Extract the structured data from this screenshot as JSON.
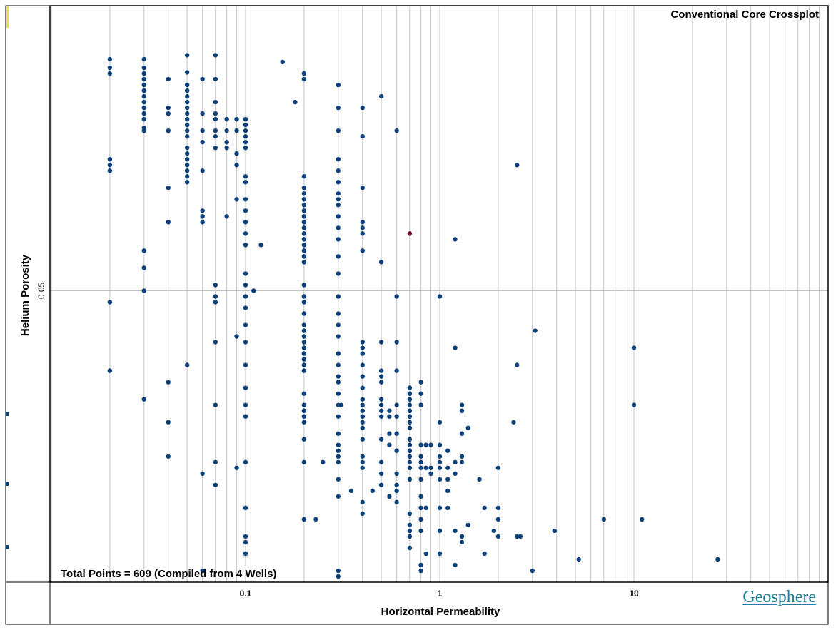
{
  "chart_data": {
    "type": "scatter",
    "title": "Conventional Core Crossplot",
    "xlabel": "Horizontal Permeability",
    "ylabel": "Helium Porosity",
    "x_scale": "log",
    "xlim": [
      0.01,
      100
    ],
    "x_tick_labels": [
      {
        "value": 0.1,
        "label": "0.1"
      },
      {
        "value": 1,
        "label": "1"
      },
      {
        "value": 10,
        "label": "10"
      }
    ],
    "y_tick_labels": [
      {
        "label": "0.05"
      }
    ],
    "grid": true,
    "annotation": "Total Points = 609 (Compiled from 4 Wells)",
    "watermark": "Geosphere",
    "colors": {
      "points": "#0d3f78",
      "highlight": "#7a1a2a",
      "grid": "#c4c4c4"
    },
    "points": [
      [
        0.02,
        0.0905
      ],
      [
        0.02,
        0.089
      ],
      [
        0.02,
        0.088
      ],
      [
        0.02,
        0.073
      ],
      [
        0.02,
        0.072
      ],
      [
        0.02,
        0.071
      ],
      [
        0.02,
        0.048
      ],
      [
        0.02,
        0.036
      ],
      [
        0.03,
        0.0905
      ],
      [
        0.03,
        0.089
      ],
      [
        0.03,
        0.088
      ],
      [
        0.03,
        0.087
      ],
      [
        0.03,
        0.086
      ],
      [
        0.03,
        0.085
      ],
      [
        0.03,
        0.084
      ],
      [
        0.03,
        0.083
      ],
      [
        0.03,
        0.082
      ],
      [
        0.03,
        0.081
      ],
      [
        0.03,
        0.08
      ],
      [
        0.03,
        0.0785
      ],
      [
        0.03,
        0.078
      ],
      [
        0.03,
        0.057
      ],
      [
        0.03,
        0.054
      ],
      [
        0.03,
        0.05
      ],
      [
        0.03,
        0.031
      ],
      [
        0.04,
        0.087
      ],
      [
        0.04,
        0.082
      ],
      [
        0.04,
        0.081
      ],
      [
        0.04,
        0.078
      ],
      [
        0.04,
        0.068
      ],
      [
        0.04,
        0.062
      ],
      [
        0.04,
        0.034
      ],
      [
        0.04,
        0.027
      ],
      [
        0.04,
        0.021
      ],
      [
        0.05,
        0.0912
      ],
      [
        0.05,
        0.0882
      ],
      [
        0.05,
        0.086
      ],
      [
        0.05,
        0.085
      ],
      [
        0.05,
        0.084
      ],
      [
        0.05,
        0.083
      ],
      [
        0.05,
        0.082
      ],
      [
        0.05,
        0.081
      ],
      [
        0.05,
        0.08
      ],
      [
        0.05,
        0.079
      ],
      [
        0.05,
        0.078
      ],
      [
        0.05,
        0.077
      ],
      [
        0.05,
        0.075
      ],
      [
        0.05,
        0.074
      ],
      [
        0.05,
        0.073
      ],
      [
        0.05,
        0.072
      ],
      [
        0.05,
        0.071
      ],
      [
        0.05,
        0.07
      ],
      [
        0.05,
        0.069
      ],
      [
        0.05,
        0.037
      ],
      [
        0.06,
        0.087
      ],
      [
        0.06,
        0.081
      ],
      [
        0.06,
        0.078
      ],
      [
        0.06,
        0.076
      ],
      [
        0.06,
        0.071
      ],
      [
        0.06,
        0.064
      ],
      [
        0.06,
        0.063
      ],
      [
        0.06,
        0.062
      ],
      [
        0.06,
        0.018
      ],
      [
        0.06,
        0.001
      ],
      [
        0.07,
        0.0912
      ],
      [
        0.07,
        0.087
      ],
      [
        0.07,
        0.083
      ],
      [
        0.07,
        0.081
      ],
      [
        0.07,
        0.08
      ],
      [
        0.07,
        0.078
      ],
      [
        0.07,
        0.077
      ],
      [
        0.07,
        0.075
      ],
      [
        0.07,
        0.051
      ],
      [
        0.07,
        0.049
      ],
      [
        0.07,
        0.048
      ],
      [
        0.07,
        0.041
      ],
      [
        0.07,
        0.03
      ],
      [
        0.07,
        0.02
      ],
      [
        0.07,
        0.016
      ],
      [
        0.08,
        0.08
      ],
      [
        0.08,
        0.078
      ],
      [
        0.08,
        0.076
      ],
      [
        0.08,
        0.075
      ],
      [
        0.08,
        0.063
      ],
      [
        0.09,
        0.08
      ],
      [
        0.09,
        0.078
      ],
      [
        0.09,
        0.074
      ],
      [
        0.09,
        0.072
      ],
      [
        0.09,
        0.066
      ],
      [
        0.09,
        0.042
      ],
      [
        0.09,
        0.019
      ],
      [
        0.1,
        0.08
      ],
      [
        0.1,
        0.079
      ],
      [
        0.1,
        0.078
      ],
      [
        0.1,
        0.077
      ],
      [
        0.1,
        0.076
      ],
      [
        0.1,
        0.075
      ],
      [
        0.1,
        0.07
      ],
      [
        0.1,
        0.069
      ],
      [
        0.1,
        0.066
      ],
      [
        0.1,
        0.064
      ],
      [
        0.1,
        0.062
      ],
      [
        0.1,
        0.06
      ],
      [
        0.1,
        0.058
      ],
      [
        0.1,
        0.053
      ],
      [
        0.1,
        0.051
      ],
      [
        0.1,
        0.049
      ],
      [
        0.1,
        0.047
      ],
      [
        0.1,
        0.044
      ],
      [
        0.1,
        0.041
      ],
      [
        0.1,
        0.037
      ],
      [
        0.1,
        0.033
      ],
      [
        0.1,
        0.03
      ],
      [
        0.1,
        0.028
      ],
      [
        0.1,
        0.02
      ],
      [
        0.1,
        0.012
      ],
      [
        0.1,
        0.007
      ],
      [
        0.1,
        0.006
      ],
      [
        0.1,
        0.004
      ],
      [
        0.11,
        0.05
      ],
      [
        0.12,
        0.058
      ],
      [
        0.155,
        0.09
      ],
      [
        0.18,
        0.083
      ],
      [
        0.2,
        0.088
      ],
      [
        0.2,
        0.087
      ],
      [
        0.2,
        0.07
      ],
      [
        0.2,
        0.068
      ],
      [
        0.2,
        0.067
      ],
      [
        0.2,
        0.066
      ],
      [
        0.2,
        0.065
      ],
      [
        0.2,
        0.064
      ],
      [
        0.2,
        0.063
      ],
      [
        0.2,
        0.062
      ],
      [
        0.2,
        0.061
      ],
      [
        0.2,
        0.06
      ],
      [
        0.2,
        0.059
      ],
      [
        0.2,
        0.058
      ],
      [
        0.2,
        0.057
      ],
      [
        0.2,
        0.056
      ],
      [
        0.2,
        0.055
      ],
      [
        0.2,
        0.051
      ],
      [
        0.2,
        0.049
      ],
      [
        0.2,
        0.048
      ],
      [
        0.2,
        0.046
      ],
      [
        0.2,
        0.044
      ],
      [
        0.2,
        0.043
      ],
      [
        0.2,
        0.042
      ],
      [
        0.2,
        0.041
      ],
      [
        0.2,
        0.04
      ],
      [
        0.2,
        0.039
      ],
      [
        0.2,
        0.038
      ],
      [
        0.2,
        0.037
      ],
      [
        0.2,
        0.036
      ],
      [
        0.2,
        0.032
      ],
      [
        0.2,
        0.03
      ],
      [
        0.2,
        0.029
      ],
      [
        0.2,
        0.028
      ],
      [
        0.2,
        0.027
      ],
      [
        0.2,
        0.024
      ],
      [
        0.2,
        0.02
      ],
      [
        0.2,
        0.01
      ],
      [
        0.23,
        0.01
      ],
      [
        0.25,
        0.02
      ],
      [
        0.3,
        0.086
      ],
      [
        0.3,
        0.082
      ],
      [
        0.3,
        0.078
      ],
      [
        0.3,
        0.073
      ],
      [
        0.3,
        0.071
      ],
      [
        0.3,
        0.069
      ],
      [
        0.3,
        0.067
      ],
      [
        0.3,
        0.066
      ],
      [
        0.3,
        0.065
      ],
      [
        0.3,
        0.063
      ],
      [
        0.3,
        0.061
      ],
      [
        0.3,
        0.059
      ],
      [
        0.3,
        0.056
      ],
      [
        0.3,
        0.053
      ],
      [
        0.3,
        0.049
      ],
      [
        0.3,
        0.046
      ],
      [
        0.3,
        0.044
      ],
      [
        0.3,
        0.042
      ],
      [
        0.3,
        0.039
      ],
      [
        0.3,
        0.037
      ],
      [
        0.3,
        0.035
      ],
      [
        0.3,
        0.034
      ],
      [
        0.3,
        0.032
      ],
      [
        0.3,
        0.03
      ],
      [
        0.3,
        0.028
      ],
      [
        0.3,
        0.025
      ],
      [
        0.3,
        0.023
      ],
      [
        0.3,
        0.022
      ],
      [
        0.3,
        0.021
      ],
      [
        0.3,
        0.02
      ],
      [
        0.3,
        0.017
      ],
      [
        0.3,
        0.014
      ],
      [
        0.3,
        0.001
      ],
      [
        0.3,
        0.0
      ],
      [
        0.31,
        0.03
      ],
      [
        0.35,
        0.015
      ],
      [
        0.4,
        0.082
      ],
      [
        0.4,
        0.077
      ],
      [
        0.4,
        0.068
      ],
      [
        0.4,
        0.062
      ],
      [
        0.4,
        0.061
      ],
      [
        0.4,
        0.06
      ],
      [
        0.4,
        0.057
      ],
      [
        0.4,
        0.041
      ],
      [
        0.4,
        0.04
      ],
      [
        0.4,
        0.039
      ],
      [
        0.4,
        0.037
      ],
      [
        0.4,
        0.035
      ],
      [
        0.4,
        0.033
      ],
      [
        0.4,
        0.031
      ],
      [
        0.4,
        0.03
      ],
      [
        0.4,
        0.029
      ],
      [
        0.4,
        0.028
      ],
      [
        0.4,
        0.027
      ],
      [
        0.4,
        0.026
      ],
      [
        0.4,
        0.024
      ],
      [
        0.4,
        0.021
      ],
      [
        0.4,
        0.02
      ],
      [
        0.4,
        0.019
      ],
      [
        0.4,
        0.013
      ],
      [
        0.4,
        0.011
      ],
      [
        0.45,
        0.015
      ],
      [
        0.5,
        0.084
      ],
      [
        0.5,
        0.055
      ],
      [
        0.5,
        0.041
      ],
      [
        0.5,
        0.036
      ],
      [
        0.5,
        0.035
      ],
      [
        0.5,
        0.034
      ],
      [
        0.5,
        0.031
      ],
      [
        0.5,
        0.03
      ],
      [
        0.5,
        0.029
      ],
      [
        0.5,
        0.028
      ],
      [
        0.5,
        0.024
      ],
      [
        0.5,
        0.02
      ],
      [
        0.5,
        0.018
      ],
      [
        0.5,
        0.016
      ],
      [
        0.55,
        0.029
      ],
      [
        0.55,
        0.028
      ],
      [
        0.55,
        0.025
      ],
      [
        0.55,
        0.023
      ],
      [
        0.55,
        0.014
      ],
      [
        0.6,
        0.078
      ],
      [
        0.6,
        0.049
      ],
      [
        0.6,
        0.041
      ],
      [
        0.6,
        0.036
      ],
      [
        0.6,
        0.03
      ],
      [
        0.6,
        0.028
      ],
      [
        0.6,
        0.025
      ],
      [
        0.6,
        0.022
      ],
      [
        0.6,
        0.018
      ],
      [
        0.6,
        0.016
      ],
      [
        0.6,
        0.013
      ],
      [
        0.6,
        0.015
      ],
      [
        0.7,
        0.033
      ],
      [
        0.7,
        0.032
      ],
      [
        0.7,
        0.031
      ],
      [
        0.7,
        0.03
      ],
      [
        0.7,
        0.029
      ],
      [
        0.7,
        0.028
      ],
      [
        0.7,
        0.027
      ],
      [
        0.7,
        0.026
      ],
      [
        0.7,
        0.024
      ],
      [
        0.7,
        0.023
      ],
      [
        0.7,
        0.022
      ],
      [
        0.7,
        0.021
      ],
      [
        0.7,
        0.02
      ],
      [
        0.7,
        0.019
      ],
      [
        0.7,
        0.017
      ],
      [
        0.7,
        0.011
      ],
      [
        0.7,
        0.009
      ],
      [
        0.7,
        0.008
      ],
      [
        0.7,
        0.007
      ],
      [
        0.7,
        0.005
      ],
      [
        0.8,
        0.034
      ],
      [
        0.8,
        0.032
      ],
      [
        0.8,
        0.03
      ],
      [
        0.8,
        0.023
      ],
      [
        0.8,
        0.021
      ],
      [
        0.8,
        0.02
      ],
      [
        0.8,
        0.019
      ],
      [
        0.8,
        0.017
      ],
      [
        0.8,
        0.014
      ],
      [
        0.8,
        0.012
      ],
      [
        0.8,
        0.01
      ],
      [
        0.8,
        0.008
      ],
      [
        0.8,
        0.001
      ],
      [
        0.8,
        0.002
      ],
      [
        0.85,
        0.023
      ],
      [
        0.85,
        0.019
      ],
      [
        0.85,
        0.012
      ],
      [
        0.85,
        0.004
      ],
      [
        0.9,
        0.023
      ],
      [
        0.9,
        0.019
      ],
      [
        0.9,
        0.018
      ],
      [
        1.0,
        0.049
      ],
      [
        1.0,
        0.027
      ],
      [
        1.0,
        0.023
      ],
      [
        1.0,
        0.021
      ],
      [
        1.0,
        0.02
      ],
      [
        1.0,
        0.019
      ],
      [
        1.0,
        0.017
      ],
      [
        1.0,
        0.012
      ],
      [
        1.0,
        0.008
      ],
      [
        1.0,
        0.004
      ],
      [
        1.1,
        0.022
      ],
      [
        1.1,
        0.019
      ],
      [
        1.1,
        0.017
      ],
      [
        1.1,
        0.015
      ],
      [
        1.1,
        0.012
      ],
      [
        1.2,
        0.059
      ],
      [
        1.2,
        0.04
      ],
      [
        1.2,
        0.02
      ],
      [
        1.2,
        0.018
      ],
      [
        1.2,
        0.008
      ],
      [
        1.2,
        0.002
      ],
      [
        1.3,
        0.03
      ],
      [
        1.3,
        0.029
      ],
      [
        1.3,
        0.025
      ],
      [
        1.3,
        0.021
      ],
      [
        1.3,
        0.02
      ],
      [
        1.3,
        0.007
      ],
      [
        1.3,
        0.006
      ],
      [
        1.4,
        0.026
      ],
      [
        1.4,
        0.009
      ],
      [
        1.6,
        0.017
      ],
      [
        1.7,
        0.012
      ],
      [
        1.7,
        0.004
      ],
      [
        1.9,
        0.008
      ],
      [
        2.0,
        0.019
      ],
      [
        2.0,
        0.012
      ],
      [
        2.0,
        0.01
      ],
      [
        2.0,
        0.007
      ],
      [
        2.4,
        0.027
      ],
      [
        2.5,
        0.072
      ],
      [
        2.5,
        0.037
      ],
      [
        2.5,
        0.007
      ],
      [
        2.6,
        0.007
      ],
      [
        3.0,
        0.001
      ],
      [
        3.1,
        0.043
      ],
      [
        3.9,
        0.008
      ],
      [
        5.2,
        0.003
      ],
      [
        7.0,
        0.01
      ],
      [
        10.0,
        0.04
      ],
      [
        10.0,
        0.03
      ],
      [
        11.0,
        0.01
      ],
      [
        27.0,
        0.003
      ]
    ],
    "highlight_points": [
      [
        0.7,
        0.06
      ]
    ]
  }
}
